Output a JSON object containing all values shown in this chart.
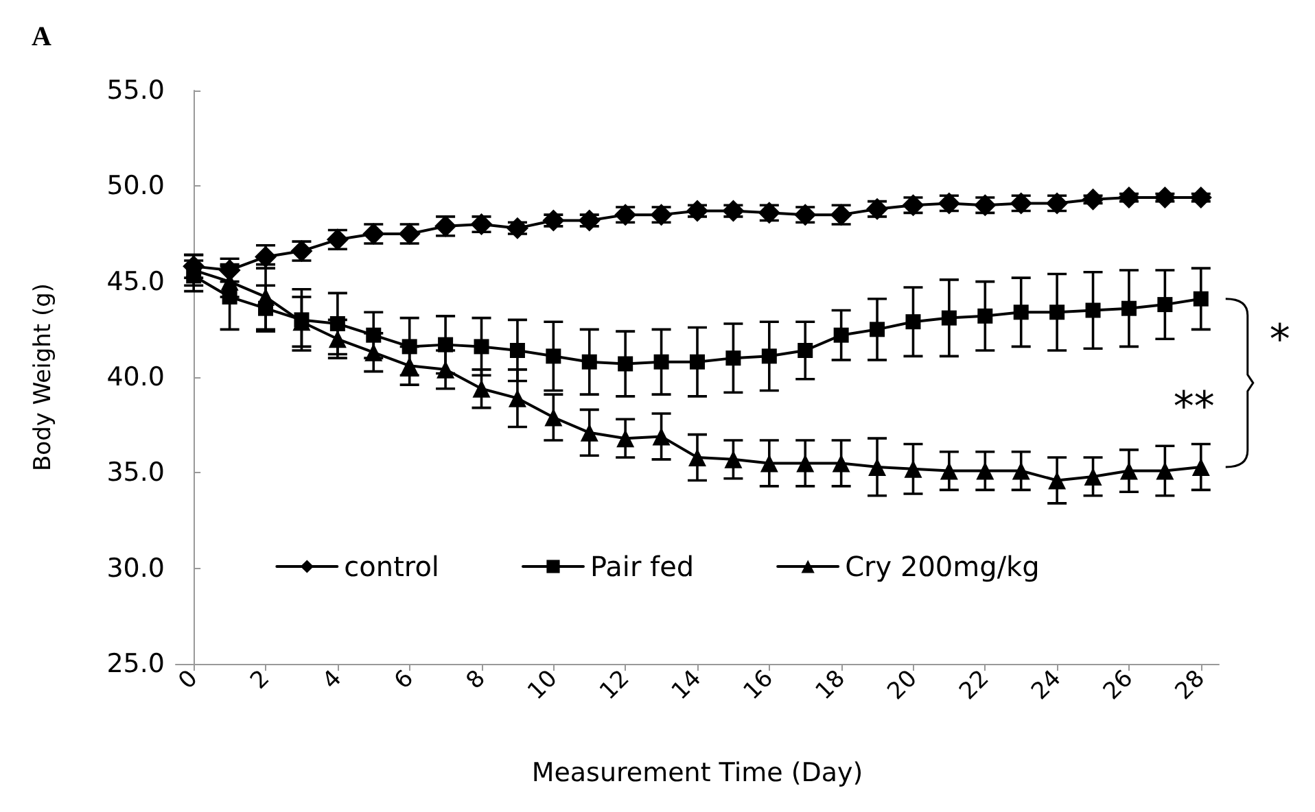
{
  "chart_data": {
    "type": "line",
    "title": "A",
    "xlabel": "Measurement Time (Day)",
    "ylabel": "Body Weight (g)",
    "x": [
      0,
      1,
      2,
      3,
      4,
      5,
      6,
      7,
      8,
      9,
      10,
      11,
      12,
      13,
      14,
      15,
      16,
      17,
      18,
      19,
      20,
      21,
      22,
      23,
      24,
      25,
      26,
      27,
      28
    ],
    "xlim": [
      -0.5,
      28.5
    ],
    "xticks": [
      0,
      2,
      4,
      6,
      8,
      10,
      12,
      14,
      16,
      18,
      20,
      22,
      24,
      26,
      28
    ],
    "series": [
      {
        "name": "control",
        "color": "#000000",
        "marker": "diamond",
        "values": [
          45.8,
          45.6,
          46.3,
          46.6,
          47.2,
          47.5,
          47.5,
          47.9,
          48.0,
          47.8,
          48.2,
          48.2,
          48.5,
          48.5,
          48.7,
          48.7,
          48.6,
          48.5,
          48.5,
          48.8,
          49.0,
          49.1,
          49.0,
          49.1,
          49.1,
          49.3,
          49.4,
          49.4,
          49.4
        ],
        "errors": [
          0.6,
          0.6,
          0.6,
          0.5,
          0.5,
          0.5,
          0.5,
          0.5,
          0.4,
          0.3,
          0.3,
          0.3,
          0.4,
          0.4,
          0.3,
          0.3,
          0.4,
          0.4,
          0.5,
          0.4,
          0.4,
          0.4,
          0.4,
          0.4,
          0.4,
          0.2,
          0.2,
          0.2,
          0.2
        ]
      },
      {
        "name": "Pair fed",
        "color": "#000000",
        "marker": "square",
        "values": [
          45.3,
          44.2,
          43.6,
          43.0,
          42.8,
          42.2,
          41.6,
          41.7,
          41.6,
          41.4,
          41.1,
          40.8,
          40.7,
          40.8,
          40.8,
          41.0,
          41.1,
          41.4,
          42.2,
          42.5,
          42.9,
          43.1,
          43.2,
          43.4,
          43.4,
          43.5,
          43.6,
          43.8,
          44.1
        ],
        "errors": [
          0.8,
          1.7,
          1.2,
          1.6,
          1.6,
          1.2,
          1.5,
          1.5,
          1.5,
          1.6,
          1.8,
          1.7,
          1.7,
          1.7,
          1.8,
          1.8,
          1.8,
          1.5,
          1.3,
          1.6,
          1.8,
          2.0,
          1.8,
          1.8,
          2.0,
          2.0,
          2.0,
          1.8,
          1.6
        ]
      },
      {
        "name": "Cry 200mg/kg",
        "color": "#000000",
        "marker": "triangle",
        "values": [
          45.6,
          45.0,
          44.2,
          42.9,
          42.0,
          41.3,
          40.6,
          40.4,
          39.4,
          38.9,
          37.9,
          37.1,
          36.8,
          36.9,
          35.8,
          35.7,
          35.5,
          35.5,
          35.5,
          35.3,
          35.2,
          35.1,
          35.1,
          35.1,
          34.6,
          34.8,
          35.1,
          35.1,
          35.3
        ],
        "errors": [
          0.8,
          0.8,
          1.7,
          1.3,
          1.0,
          1.0,
          1.0,
          1.0,
          1.0,
          1.5,
          1.2,
          1.2,
          1.0,
          1.2,
          1.2,
          1.0,
          1.2,
          1.2,
          1.2,
          1.5,
          1.3,
          1.0,
          1.0,
          1.0,
          1.2,
          1.0,
          1.1,
          1.3,
          1.2
        ]
      }
    ],
    "ylim": [
      25,
      55
    ],
    "yticks": [
      {
        "value": 25,
        "label": "25.0"
      },
      {
        "value": 30,
        "label": "30.0"
      },
      {
        "value": 35,
        "label": "35.0"
      },
      {
        "value": 40,
        "label": "40.0"
      },
      {
        "value": 45,
        "label": "45.0"
      },
      {
        "value": 50,
        "label": "50.0"
      },
      {
        "value": 55,
        "label": "55.0"
      }
    ],
    "grid": false,
    "legend": "bottom",
    "line_style": "solid",
    "annotations": [
      "**",
      "*"
    ]
  }
}
